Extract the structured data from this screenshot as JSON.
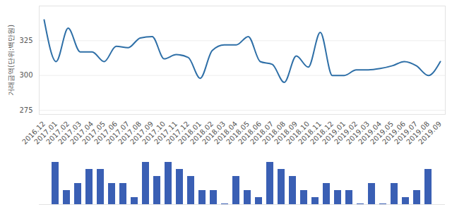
{
  "chart_data": [
    {
      "type": "line",
      "y_label": "거래금액(단위:백만원)",
      "categories": [
        "2016.12",
        "2017.01",
        "2017.02",
        "2017.03",
        "2017.04",
        "2017.05",
        "2017.06",
        "2017.07",
        "2017.08",
        "2017.09",
        "2017.10",
        "2017.11",
        "2017.12",
        "2018.01",
        "2018.02",
        "2018.03",
        "2018.04",
        "2018.05",
        "2018.06",
        "2018.07",
        "2018.08",
        "2018.09",
        "2018.10",
        "2018.11",
        "2018.12",
        "2019.01",
        "2019.02",
        "2019.03",
        "2019.04",
        "2019.05",
        "2019.06",
        "2019.07",
        "2019.08",
        "2019.09"
      ],
      "values": [
        340,
        310,
        334,
        317,
        317,
        310,
        321,
        320,
        327,
        328,
        312,
        315,
        313,
        298,
        318,
        322,
        322,
        328,
        310,
        308,
        295,
        314,
        306,
        331,
        300,
        300,
        304,
        304,
        305,
        307,
        310,
        307,
        300,
        310
      ],
      "color": "#2e6fa7",
      "ylim": [
        272,
        350
      ],
      "yticks": [
        275,
        300,
        325
      ],
      "grid": true
    },
    {
      "type": "bar",
      "categories": [
        "2016.12",
        "2017.01",
        "2017.02",
        "2017.03",
        "2017.04",
        "2017.05",
        "2017.06",
        "2017.07",
        "2017.08",
        "2017.09",
        "2017.10",
        "2017.11",
        "2017.12",
        "2018.01",
        "2018.02",
        "2018.03",
        "2018.04",
        "2018.05",
        "2018.06",
        "2018.07",
        "2018.08",
        "2018.09",
        "2018.10",
        "2018.11",
        "2018.12",
        "2019.01",
        "2019.02",
        "2019.03",
        "2019.04",
        "2019.05",
        "2019.06",
        "2019.07",
        "2019.08",
        "2019.09"
      ],
      "values": [
        6,
        2,
        3,
        5,
        5,
        3,
        3,
        1,
        6,
        4,
        6,
        5,
        4,
        2,
        2,
        0.1,
        4,
        2,
        1,
        6,
        5,
        4,
        2,
        1,
        3,
        2,
        2,
        0.1,
        3,
        0.1,
        3,
        1,
        2,
        5
      ],
      "color": "#3a5fb4",
      "ylim": [
        0,
        6
      ],
      "tick_labels": false
    }
  ]
}
